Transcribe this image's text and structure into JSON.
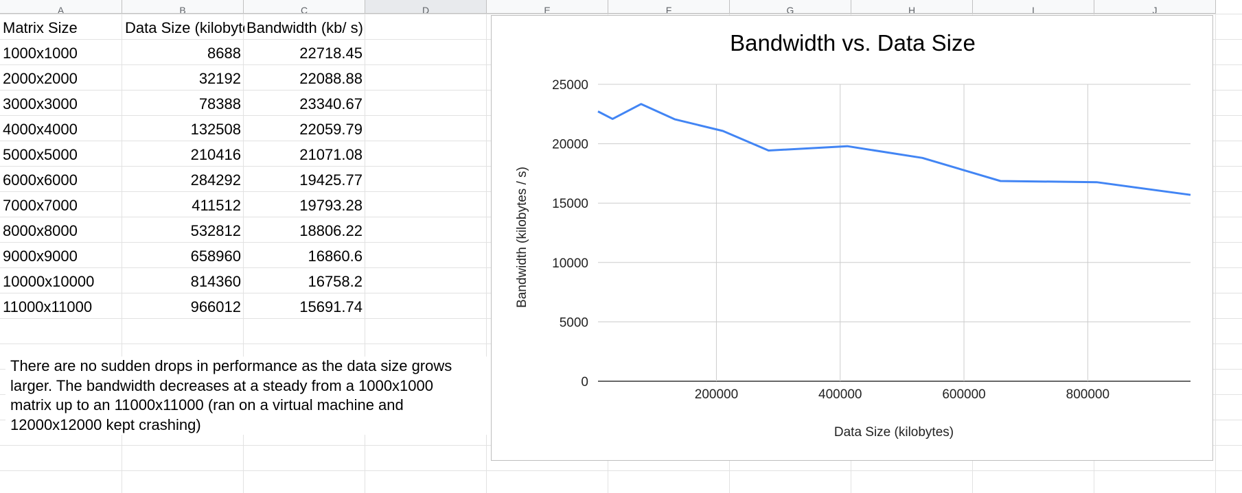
{
  "columns": [
    "A",
    "B",
    "C",
    "D",
    "E",
    "F",
    "G",
    "H",
    "I",
    "J"
  ],
  "table": {
    "headers": [
      "Matrix Size",
      "Data Size (kilobytes)",
      "Bandwidth (kb/ s)"
    ],
    "rows": [
      [
        "1000x1000",
        "8688",
        "22718.45"
      ],
      [
        "2000x2000",
        "32192",
        "22088.88"
      ],
      [
        "3000x3000",
        "78388",
        "23340.67"
      ],
      [
        "4000x4000",
        "132508",
        "22059.79"
      ],
      [
        "5000x5000",
        "210416",
        "21071.08"
      ],
      [
        "6000x6000",
        "284292",
        "19425.77"
      ],
      [
        "7000x7000",
        "411512",
        "19793.28"
      ],
      [
        "8000x8000",
        "532812",
        "18806.22"
      ],
      [
        "9000x9000",
        "658960",
        "16860.6"
      ],
      [
        "10000x10000",
        "814360",
        "16758.2"
      ],
      [
        "11000x11000",
        "966012",
        "15691.74"
      ]
    ]
  },
  "note": {
    "lines": [
      "There are no sudden drops in performance as the data size grows",
      "larger. The bandwidth decreases at a steady from a 1000x1000",
      "matrix up to an 11000x11000 (ran on a virtual machine and",
      "12000x12000 kept crashing)"
    ]
  },
  "chart_data": {
    "type": "line",
    "title": "Bandwidth vs. Data Size",
    "xlabel": "Data Size (kilobytes)",
    "ylabel": "Bandwidth (kilobytes / s)",
    "x": [
      8688,
      32192,
      78388,
      132508,
      210416,
      284292,
      411512,
      532812,
      658960,
      814360,
      966012
    ],
    "series": [
      {
        "values": [
          22718.45,
          22088.88,
          23340.67,
          22059.79,
          21071.08,
          19425.77,
          19793.28,
          18806.22,
          16860.6,
          16758.2,
          15691.74
        ],
        "color": "#4285f4"
      }
    ],
    "xlim": [
      8688,
      966012
    ],
    "ylim": [
      0,
      25000
    ],
    "xticks": [
      200000,
      400000,
      600000,
      800000
    ],
    "yticks": [
      0,
      5000,
      10000,
      15000,
      20000,
      25000
    ],
    "grid": true,
    "legend": "none"
  }
}
